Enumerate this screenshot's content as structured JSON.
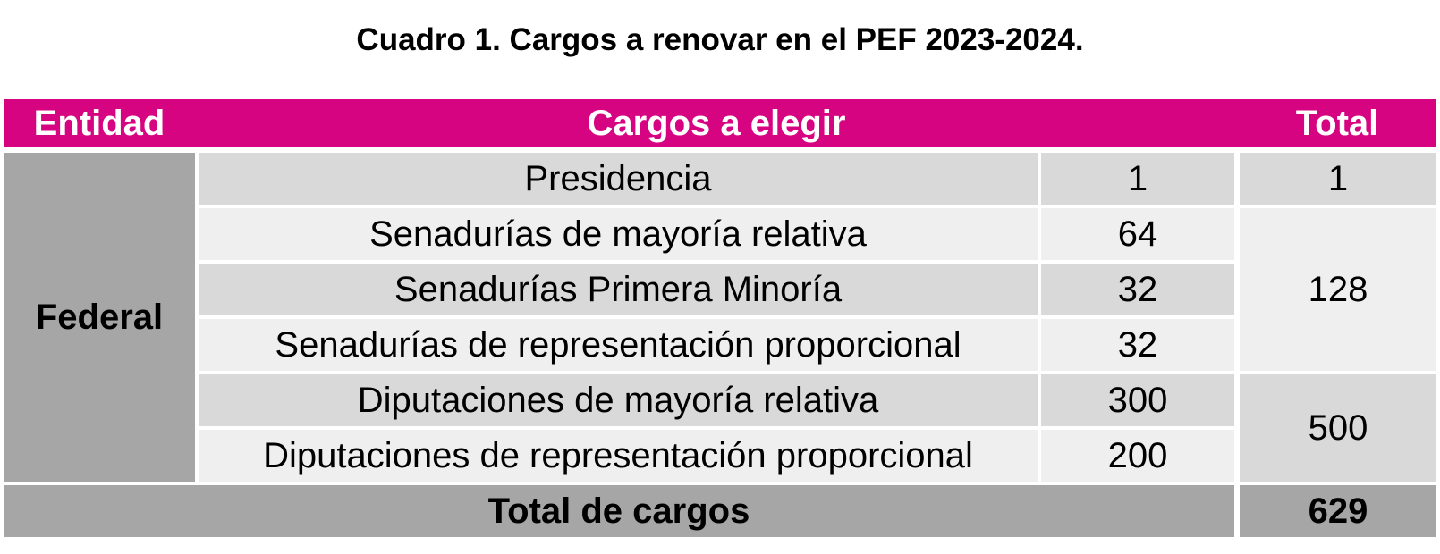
{
  "caption": "Cuadro 1. Cargos a renovar en el PEF 2023-2024.",
  "header": {
    "entidad": "Entidad",
    "cargos": "Cargos a elegir",
    "total": "Total"
  },
  "entity": "Federal",
  "rows": [
    {
      "cargo": "Presidencia",
      "count": "1"
    },
    {
      "cargo": "Senadurías de mayoría relativa",
      "count": "64"
    },
    {
      "cargo": "Senadurías Primera Minoría",
      "count": "32"
    },
    {
      "cargo": "Senadurías de representación proporcional",
      "count": "32"
    },
    {
      "cargo": "Diputaciones de mayoría relativa",
      "count": "300"
    },
    {
      "cargo": "Diputaciones de representación proporcional",
      "count": "200"
    }
  ],
  "group_totals": [
    "1",
    "128",
    "500"
  ],
  "footer": {
    "label": "Total de cargos",
    "value": "629"
  },
  "colors": {
    "header": "#d60480",
    "entity_cell": "#a6a6a6",
    "row_dark": "#d9d9d9",
    "row_light": "#efefef"
  }
}
